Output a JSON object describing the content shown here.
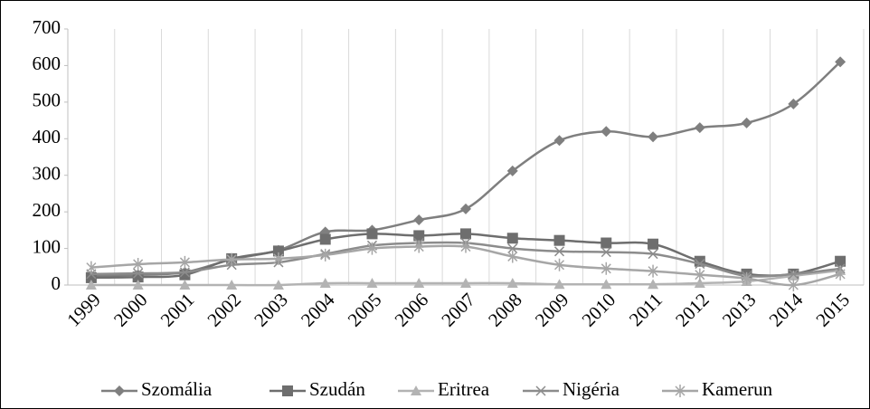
{
  "chart_data": {
    "type": "line",
    "smooth": true,
    "grid": "vertical",
    "legend": "bottom",
    "categories": [
      "1999",
      "2000",
      "2001",
      "2002",
      "2003",
      "2004",
      "2005",
      "2006",
      "2007",
      "2008",
      "2009",
      "2010",
      "2011",
      "2012",
      "2013",
      "2014",
      "2015"
    ],
    "ylim": [
      0,
      700
    ],
    "yticks": [
      0,
      100,
      200,
      300,
      400,
      500,
      600,
      700
    ],
    "series": [
      {
        "name": "Szomália",
        "color": "#7f7f7f",
        "marker": "diamond",
        "values": [
          25,
          28,
          35,
          70,
          95,
          145,
          150,
          178,
          208,
          312,
          395,
          420,
          405,
          430,
          443,
          495,
          610
        ]
      },
      {
        "name": "Szudán",
        "color": "#6e6e6e",
        "marker": "square",
        "values": [
          20,
          22,
          28,
          72,
          93,
          125,
          140,
          135,
          140,
          128,
          122,
          115,
          112,
          65,
          30,
          30,
          65
        ]
      },
      {
        "name": "Eritrea",
        "color": "#b3b3b3",
        "marker": "triangle",
        "values": [
          0,
          0,
          0,
          0,
          0,
          5,
          5,
          5,
          5,
          5,
          2,
          2,
          2,
          5,
          10,
          25,
          40
        ]
      },
      {
        "name": "Nigéria",
        "color": "#8c8c8c",
        "marker": "x",
        "values": [
          30,
          32,
          35,
          55,
          62,
          85,
          108,
          115,
          115,
          100,
          92,
          90,
          85,
          58,
          25,
          30,
          45
        ]
      },
      {
        "name": "Kamerun",
        "color": "#a6a6a6",
        "marker": "star",
        "values": [
          48,
          57,
          62,
          70,
          72,
          82,
          100,
          105,
          105,
          78,
          55,
          45,
          38,
          28,
          18,
          0,
          30
        ]
      }
    ]
  }
}
